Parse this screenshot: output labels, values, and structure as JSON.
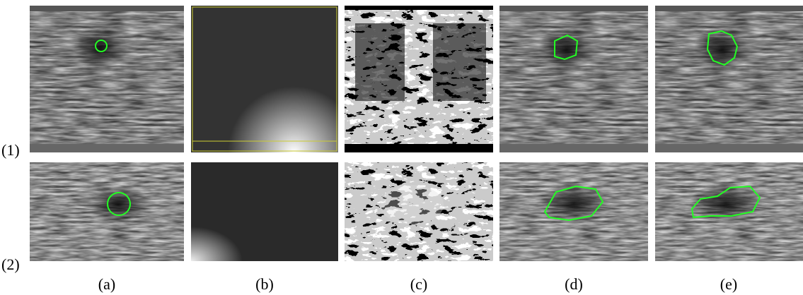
{
  "row_labels": [
    "(1)",
    "(2)"
  ],
  "column_labels": [
    "(a)",
    "(b)",
    "(c)",
    "(d)",
    "(e)"
  ]
}
